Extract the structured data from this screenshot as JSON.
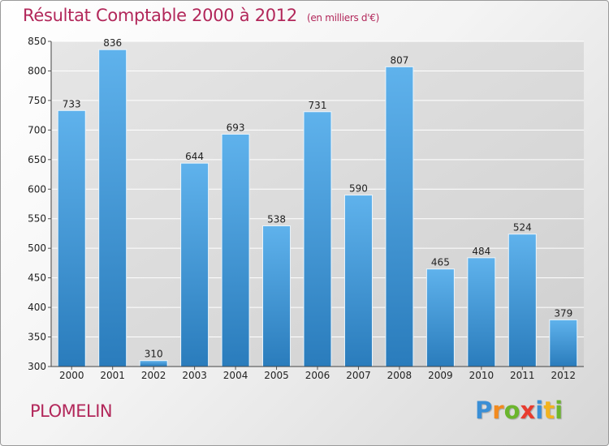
{
  "header": {
    "title": "Résultat Comptable 2000 à 2012",
    "subtitle": "(en milliers d'€)"
  },
  "footer": {
    "commune": "PLOMELIN",
    "brand": "Proxiti"
  },
  "colors": {
    "title": "#b2275a",
    "bar_top": "#5eb0ea",
    "bar_bottom": "#2c7fbf",
    "grid": "#ffffff",
    "plot_bg": "#dcdcdc"
  },
  "chart_data": {
    "type": "bar",
    "categories": [
      "2000",
      "2001",
      "2002",
      "2003",
      "2004",
      "2005",
      "2006",
      "2007",
      "2008",
      "2009",
      "2010",
      "2011",
      "2012"
    ],
    "values": [
      733,
      836,
      310,
      644,
      693,
      538,
      731,
      590,
      807,
      465,
      484,
      524,
      379
    ],
    "title": "Résultat Comptable 2000 à 2012",
    "subtitle": "(en milliers d'€)",
    "ylim": [
      300,
      850
    ],
    "yticks": [
      300,
      350,
      400,
      450,
      500,
      550,
      600,
      650,
      700,
      750,
      800,
      850
    ],
    "grid": true,
    "data_labels": true
  }
}
